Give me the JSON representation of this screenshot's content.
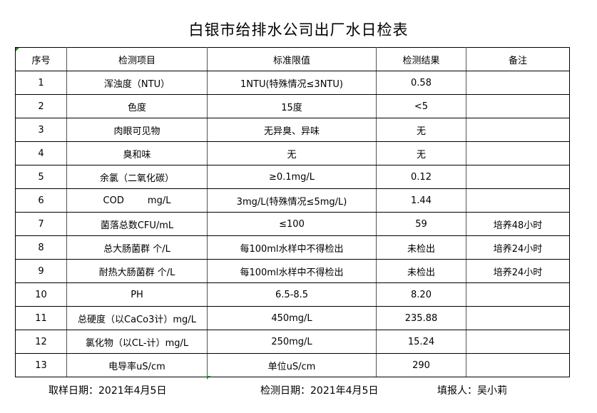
{
  "title": "白银市给排水公司出厂水日检表",
  "columns": [
    "序号",
    "检测项目",
    "标准限值",
    "检测结果",
    "备注"
  ],
  "rows": [
    [
      "1",
      "浑浊度（NTU）",
      "1NTU(特殊情况≤3NTU)",
      "0.58",
      ""
    ],
    [
      "2",
      "色度",
      "15度",
      "<5",
      ""
    ],
    [
      "3",
      "肉眼可见物",
      "无异臭、异味",
      "无",
      ""
    ],
    [
      "4",
      "臭和味",
      "无",
      "无",
      ""
    ],
    [
      "5",
      "余氯（二氧化碳）",
      "≥0.1mg/L",
      "0.12",
      ""
    ],
    [
      "6",
      "COD        mg/L",
      "3mg/L(特殊情况≤5mg/L)",
      "1.44",
      ""
    ],
    [
      "7",
      "菌落总数CFU/mL",
      "≤100",
      "59",
      "培养48小时"
    ],
    [
      "8",
      "总大肠菌群 个/L",
      "每100ml水样中不得检出",
      "未检出",
      "培养24小时"
    ],
    [
      "9",
      "耐热大肠菌群 个/L",
      "每100ml水样中不得检出",
      "未检出",
      "培养24小时"
    ],
    [
      "10",
      "PH",
      "6.5-8.5",
      "8.20",
      ""
    ],
    [
      "11",
      "总硬度（以CaCo3计）mg/L",
      "450mg/L",
      "235.88",
      ""
    ],
    [
      "12",
      "氯化物（以CL-计）mg/L",
      "250mg/L",
      "15.24",
      ""
    ],
    [
      "13",
      "电导率uS/cm",
      "单位uS/cm",
      "290",
      ""
    ]
  ],
  "footer": {
    "sample_date": "取样日期：2021年4月5日",
    "test_date": "检测日期：2021年4月5日",
    "reporter": "填报人：吴小莉"
  },
  "colors": {
    "cell_marker": "#1a8a1a"
  }
}
